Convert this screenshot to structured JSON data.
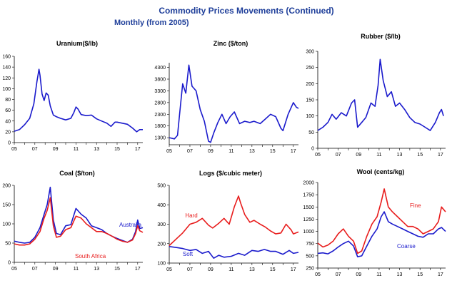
{
  "header": {
    "title": "Commodity Prices Movements (Continued)",
    "subtitle": "Monthly (from 2005)"
  },
  "colors": {
    "blue": "#1a1acc",
    "red": "#e81c1c"
  },
  "chart_data": [
    {
      "type": "line",
      "title": "Uranium($/lb)",
      "ylim": [
        0,
        160
      ],
      "yticks": [
        0,
        20,
        40,
        60,
        80,
        100,
        120,
        140,
        160
      ],
      "xlim": [
        2005,
        2017.5
      ],
      "xticks": [
        "05",
        "07",
        "09",
        "11",
        "13",
        "15",
        "17"
      ],
      "series": [
        {
          "color": "#1a1acc",
          "x": [
            2005,
            2005.5,
            2006,
            2006.5,
            2006.9,
            2007.2,
            2007.4,
            2007.5,
            2007.7,
            2007.9,
            2008.1,
            2008.3,
            2008.5,
            2008.8,
            2009.1,
            2009.5,
            2010,
            2010.5,
            2010.8,
            2011.0,
            2011.2,
            2011.5,
            2012,
            2012.5,
            2013,
            2013.5,
            2014,
            2014.4,
            2014.8,
            2015,
            2015.5,
            2016,
            2016.5,
            2016.9,
            2017.2,
            2017.5
          ],
          "y": [
            21,
            24,
            33,
            45,
            72,
            113,
            136,
            125,
            90,
            78,
            92,
            88,
            68,
            51,
            48,
            45,
            42,
            45,
            56,
            66,
            62,
            52,
            50,
            51,
            44,
            40,
            36,
            30,
            38,
            38,
            36,
            34,
            27,
            20,
            24,
            24
          ]
        }
      ]
    },
    {
      "type": "line",
      "title": "Zinc ($/ton)",
      "ylim": [
        1000,
        4500
      ],
      "yticks": [
        1300,
        1800,
        2300,
        2800,
        3300,
        3800,
        4300
      ],
      "xlim": [
        2005,
        2017.5
      ],
      "xticks": [
        "05",
        "07",
        "09",
        "11",
        "13",
        "15",
        "17"
      ],
      "series": [
        {
          "color": "#1a1acc",
          "x": [
            2005,
            2005.5,
            2005.8,
            2006.0,
            2006.3,
            2006.6,
            2006.9,
            2007.2,
            2007.6,
            2008.0,
            2008.4,
            2008.8,
            2009.0,
            2009.3,
            2009.7,
            2010.1,
            2010.5,
            2010.9,
            2011.3,
            2011.8,
            2012.3,
            2012.8,
            2013.2,
            2013.8,
            2014.3,
            2014.8,
            2015.3,
            2015.8,
            2016.0,
            2016.5,
            2017.0,
            2017.3,
            2017.5
          ],
          "y": [
            1300,
            1250,
            1400,
            2300,
            3600,
            3200,
            4400,
            3500,
            3300,
            2500,
            2000,
            1150,
            1100,
            1500,
            1950,
            2300,
            1900,
            2200,
            2400,
            1900,
            2000,
            1950,
            2000,
            1900,
            2100,
            2300,
            2200,
            1700,
            1600,
            2300,
            2800,
            2600,
            2550
          ]
        }
      ]
    },
    {
      "type": "line",
      "title": "Rubber ($/lb)",
      "ylim": [
        0,
        300
      ],
      "yticks": [
        0,
        50,
        100,
        150,
        200,
        250,
        300
      ],
      "xlim": [
        2005,
        2017.5
      ],
      "xticks": [
        "05",
        "07",
        "09",
        "11",
        "13",
        "15",
        "17"
      ],
      "series": [
        {
          "color": "#1a1acc",
          "x": [
            2005,
            2005.5,
            2006,
            2006.4,
            2006.8,
            2007.3,
            2007.8,
            2008.3,
            2008.6,
            2008.9,
            2009.3,
            2009.7,
            2010.2,
            2010.6,
            2010.9,
            2011.1,
            2011.4,
            2011.8,
            2012.2,
            2012.6,
            2013.0,
            2013.5,
            2014.0,
            2014.5,
            2015.0,
            2015.5,
            2016.0,
            2016.5,
            2016.9,
            2017.1,
            2017.3
          ],
          "y": [
            55,
            65,
            80,
            105,
            90,
            110,
            100,
            140,
            150,
            65,
            80,
            95,
            140,
            130,
            195,
            275,
            210,
            160,
            175,
            130,
            140,
            120,
            95,
            80,
            75,
            65,
            55,
            80,
            110,
            120,
            100
          ]
        }
      ]
    },
    {
      "type": "line",
      "title": "Coal ($/ton)",
      "ylim": [
        0,
        200
      ],
      "yticks": [
        0,
        50,
        100,
        150,
        200
      ],
      "xlim": [
        2005,
        2017.5
      ],
      "xticks": [
        "05",
        "07",
        "09",
        "11",
        "13",
        "15",
        "17"
      ],
      "series": [
        {
          "name": "Australia",
          "color": "#1a1acc",
          "x": [
            2005,
            2005.5,
            2006,
            2006.5,
            2007,
            2007.5,
            2007.9,
            2008.2,
            2008.5,
            2008.8,
            2009.1,
            2009.5,
            2010,
            2010.5,
            2011,
            2011.5,
            2012,
            2012.5,
            2013,
            2013.5,
            2014,
            2014.5,
            2015,
            2015.5,
            2016,
            2016.5,
            2016.8,
            2017.0,
            2017.2,
            2017.5
          ],
          "y": [
            55,
            52,
            50,
            52,
            65,
            90,
            125,
            150,
            195,
            110,
            75,
            72,
            95,
            98,
            140,
            125,
            115,
            95,
            90,
            85,
            75,
            68,
            62,
            57,
            52,
            60,
            80,
            110,
            88,
            90
          ]
        },
        {
          "name": "South Africa",
          "color": "#e81c1c",
          "x": [
            2005,
            2005.5,
            2006,
            2006.5,
            2007,
            2007.5,
            2007.9,
            2008.2,
            2008.5,
            2008.8,
            2009.1,
            2009.5,
            2010,
            2010.5,
            2011,
            2011.5,
            2012,
            2012.5,
            2013,
            2013.5,
            2014,
            2014.5,
            2015,
            2015.5,
            2016,
            2016.5,
            2016.8,
            2017.0,
            2017.2,
            2017.5
          ],
          "y": [
            48,
            45,
            45,
            48,
            60,
            80,
            115,
            135,
            168,
            95,
            65,
            68,
            85,
            90,
            120,
            115,
            100,
            90,
            80,
            80,
            75,
            68,
            60,
            55,
            52,
            58,
            75,
            95,
            82,
            78
          ]
        }
      ]
    },
    {
      "type": "line",
      "title": "Logs ($/cubic meter)",
      "ylim": [
        100,
        500
      ],
      "yticks": [
        100,
        200,
        300,
        400,
        500
      ],
      "xlim": [
        2005,
        2017.5
      ],
      "xticks": [
        "05",
        "07",
        "09",
        "11",
        "13",
        "15",
        "17"
      ],
      "series": [
        {
          "name": "Hard",
          "color": "#e81c1c",
          "x": [
            2005,
            2005.7,
            2006.3,
            2007,
            2007.6,
            2008.2,
            2008.8,
            2009.2,
            2009.8,
            2010.3,
            2010.8,
            2011.3,
            2011.7,
            2011.9,
            2012.3,
            2012.8,
            2013.2,
            2013.8,
            2014.3,
            2014.8,
            2015.3,
            2015.8,
            2016.3,
            2016.8,
            2017.0,
            2017.5
          ],
          "y": [
            190,
            225,
            255,
            300,
            310,
            330,
            295,
            280,
            305,
            330,
            300,
            390,
            445,
            410,
            350,
            310,
            320,
            300,
            285,
            265,
            250,
            255,
            300,
            270,
            250,
            260
          ]
        },
        {
          "name": "Soft",
          "color": "#1a1acc",
          "x": [
            2005,
            2005.7,
            2006.3,
            2007,
            2007.6,
            2008.2,
            2008.8,
            2009.3,
            2009.8,
            2010.3,
            2011,
            2011.7,
            2012.3,
            2013,
            2013.6,
            2014.2,
            2014.8,
            2015.3,
            2016,
            2016.6,
            2017.0,
            2017.5
          ],
          "y": [
            185,
            180,
            175,
            165,
            170,
            150,
            160,
            125,
            140,
            130,
            135,
            150,
            140,
            165,
            160,
            170,
            160,
            160,
            145,
            165,
            150,
            155
          ]
        }
      ]
    },
    {
      "type": "line",
      "title": "Wool (cents/kg)",
      "ylim": [
        250,
        2000
      ],
      "yticks": [
        250,
        500,
        750,
        1000,
        1250,
        1500,
        1750,
        2000
      ],
      "xlim": [
        2005,
        2017.5
      ],
      "xticks": [
        "05",
        "07",
        "09",
        "11",
        "13",
        "15",
        "17"
      ],
      "series": [
        {
          "name": "Fine",
          "color": "#e81c1c",
          "x": [
            2005,
            2005.5,
            2006,
            2006.5,
            2007,
            2007.5,
            2008,
            2008.5,
            2008.9,
            2009.3,
            2009.8,
            2010.3,
            2010.8,
            2011.2,
            2011.5,
            2011.9,
            2012.3,
            2012.8,
            2013.3,
            2013.8,
            2014.3,
            2014.8,
            2015.3,
            2015.8,
            2016.3,
            2016.8,
            2017.1,
            2017.5
          ],
          "y": [
            760,
            680,
            720,
            800,
            950,
            1050,
            900,
            800,
            550,
            600,
            900,
            1150,
            1300,
            1600,
            1870,
            1500,
            1400,
            1300,
            1200,
            1100,
            1100,
            1050,
            950,
            1000,
            1050,
            1200,
            1500,
            1400
          ]
        },
        {
          "name": "Coarse",
          "color": "#1a1acc",
          "x": [
            2005,
            2005.5,
            2006,
            2006.5,
            2007,
            2007.5,
            2008,
            2008.5,
            2008.9,
            2009.3,
            2009.8,
            2010.3,
            2010.8,
            2011.2,
            2011.5,
            2011.9,
            2012.3,
            2012.8,
            2013.3,
            2013.8,
            2014.3,
            2014.8,
            2015.3,
            2015.8,
            2016.3,
            2016.8,
            2017.1,
            2017.5
          ],
          "y": [
            550,
            560,
            540,
            600,
            680,
            750,
            800,
            700,
            480,
            500,
            700,
            900,
            1050,
            1300,
            1400,
            1200,
            1150,
            1100,
            1050,
            1000,
            950,
            900,
            880,
            950,
            950,
            1050,
            1080,
            1000
          ]
        }
      ]
    }
  ]
}
